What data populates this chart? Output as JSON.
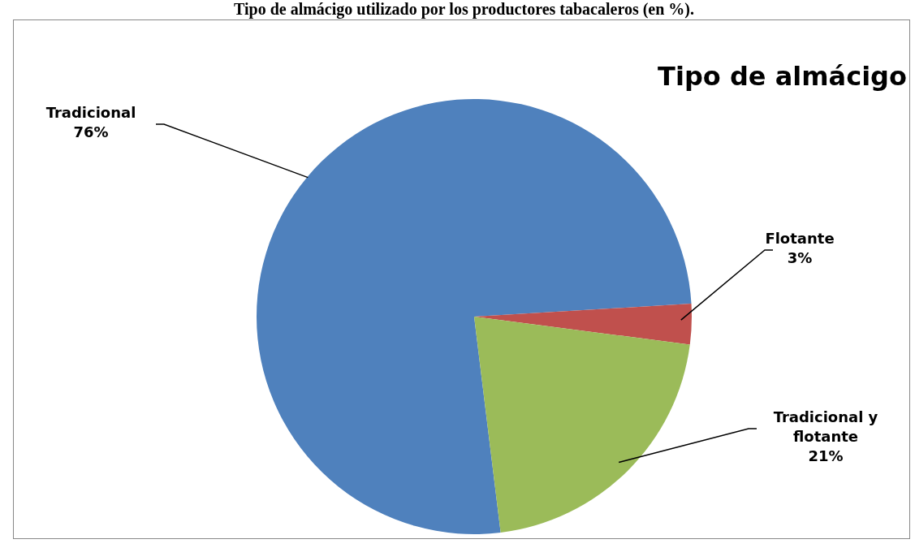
{
  "chart_data": {
    "type": "pie",
    "title": "Tipo de almácigo",
    "annotations": [
      "Tipo de almácigo utilizado por los productores tabacaleros (en %)."
    ],
    "categories": [
      "Tradicional",
      "Flotante",
      "Tradicional y flotante"
    ],
    "values": [
      76,
      3,
      21
    ],
    "colors": [
      "#4f81bd",
      "#c0504d",
      "#9bbb59"
    ],
    "value_labels": [
      "76%",
      "3%",
      "21%"
    ],
    "legend": false
  }
}
